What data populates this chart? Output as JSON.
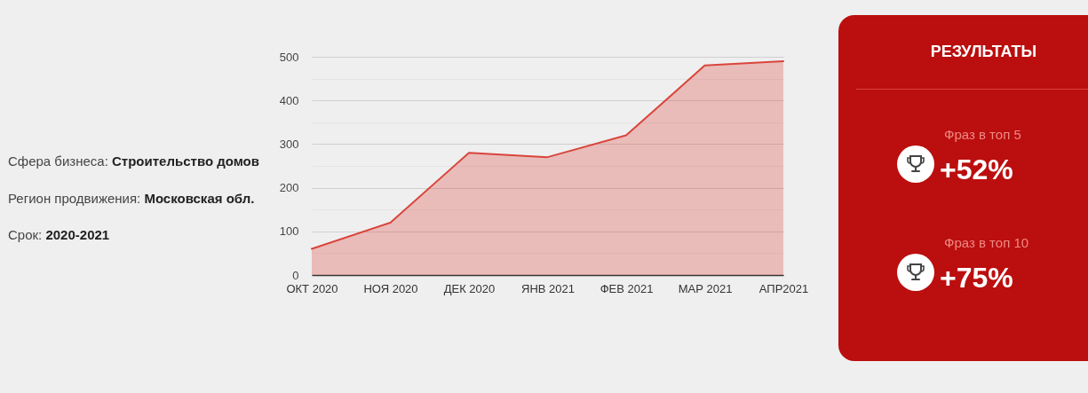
{
  "chart_data": [
    {
      "type": "other",
      "annotations": [
        "Сфера бизнеса: Строительство домов",
        "Регион продвижения: Московская обл.",
        "Срок: 2020-2021"
      ]
    },
    {
      "type": "area",
      "categories": [
        "ОКТ 2020",
        "НОЯ 2020",
        "ДЕК 2020",
        "ЯНВ 2021",
        "ФЕВ 2021",
        "МАР 2021",
        "АПР2021"
      ],
      "values": [
        60,
        120,
        280,
        270,
        320,
        480,
        490
      ],
      "color": "#d9453c",
      "ylim": [
        0,
        500
      ],
      "yticks": [
        0,
        {
          "value": 50,
          "label": null
        },
        100,
        {
          "value": 150,
          "label": null
        },
        200,
        {
          "value": 250,
          "label": null
        },
        300,
        {
          "value": 350,
          "label": null
        },
        400,
        {
          "value": 450,
          "label": null
        },
        500
      ],
      "grid": "y"
    },
    {
      "type": "other",
      "title": "РЕЗУЛЬТАТЫ",
      "annotations": [
        "Фраз в топ 5",
        "+52%",
        "Фраз в топ 10",
        "+75%"
      ]
    }
  ]
}
